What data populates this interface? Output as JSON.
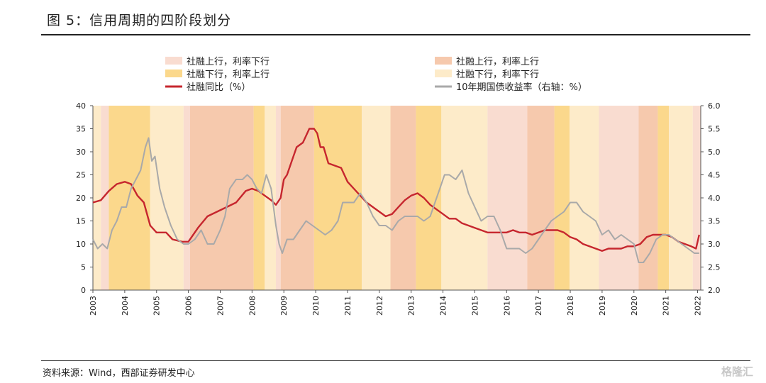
{
  "header": {
    "title": "图 5：信用周期的四阶段划分"
  },
  "footer": {
    "source": "资料来源：Wind，西部证券研发中心",
    "watermark": "格隆汇"
  },
  "colors": {
    "phase_a": "#f9dcd0",
    "phase_b": "#fbd88c",
    "phase_c": "#f6c9ad",
    "phase_d": "#fdebc9",
    "tsf": "#c6262e",
    "yield": "#a9a9a9"
  },
  "chart_data": {
    "type": "line",
    "title": "信用周期的四阶段划分",
    "x_range": [
      2003.0,
      2022.1
    ],
    "x_ticks": [
      "2003",
      "2004",
      "2005",
      "2006",
      "2007",
      "2008",
      "2009",
      "2010",
      "2011",
      "2012",
      "2013",
      "2014",
      "2015",
      "2016",
      "2017",
      "2018",
      "2019",
      "2020",
      "2021",
      "2022"
    ],
    "left_axis": {
      "min": 0,
      "max": 40,
      "ticks": [
        "0",
        "5",
        "10",
        "15",
        "20",
        "25",
        "30",
        "35",
        "40"
      ]
    },
    "right_axis": {
      "min": 2.0,
      "max": 6.0,
      "ticks": [
        "2.0",
        "2.5",
        "3.0",
        "3.5",
        "4.0",
        "4.5",
        "5.0",
        "5.5",
        "6.0"
      ]
    },
    "legend": [
      {
        "key": "A",
        "label": "社融上行，利率下行",
        "kind": "patch"
      },
      {
        "key": "C",
        "label": "社融上行，利率上行",
        "kind": "patch"
      },
      {
        "key": "B",
        "label": "社融下行，利率上行",
        "kind": "patch"
      },
      {
        "key": "D",
        "label": "社融下行，利率下行",
        "kind": "patch"
      },
      {
        "key": "tsf",
        "label": "社融同比（%）",
        "kind": "line"
      },
      {
        "key": "yield",
        "label": "10年期国债收益率（右轴：%）",
        "kind": "line"
      }
    ],
    "phases": [
      {
        "start": 2003.0,
        "end": 2003.25,
        "phase": "D"
      },
      {
        "start": 2003.25,
        "end": 2003.5,
        "phase": "A"
      },
      {
        "start": 2003.5,
        "end": 2004.8,
        "phase": "B"
      },
      {
        "start": 2004.8,
        "end": 2005.85,
        "phase": "D"
      },
      {
        "start": 2005.85,
        "end": 2006.05,
        "phase": "A"
      },
      {
        "start": 2006.05,
        "end": 2008.05,
        "phase": "C"
      },
      {
        "start": 2008.05,
        "end": 2008.4,
        "phase": "B"
      },
      {
        "start": 2008.4,
        "end": 2008.75,
        "phase": "D"
      },
      {
        "start": 2008.75,
        "end": 2008.9,
        "phase": "A"
      },
      {
        "start": 2008.9,
        "end": 2009.95,
        "phase": "C"
      },
      {
        "start": 2009.95,
        "end": 2011.45,
        "phase": "B"
      },
      {
        "start": 2011.45,
        "end": 2012.35,
        "phase": "D"
      },
      {
        "start": 2012.35,
        "end": 2013.15,
        "phase": "C"
      },
      {
        "start": 2013.15,
        "end": 2013.95,
        "phase": "B"
      },
      {
        "start": 2013.95,
        "end": 2015.4,
        "phase": "D"
      },
      {
        "start": 2015.4,
        "end": 2016.65,
        "phase": "A"
      },
      {
        "start": 2016.65,
        "end": 2017.5,
        "phase": "C"
      },
      {
        "start": 2017.5,
        "end": 2017.98,
        "phase": "B"
      },
      {
        "start": 2017.98,
        "end": 2018.9,
        "phase": "D"
      },
      {
        "start": 2018.9,
        "end": 2020.15,
        "phase": "A"
      },
      {
        "start": 2020.15,
        "end": 2020.75,
        "phase": "C"
      },
      {
        "start": 2020.75,
        "end": 2021.1,
        "phase": "B"
      },
      {
        "start": 2021.1,
        "end": 2021.85,
        "phase": "D"
      },
      {
        "start": 2021.85,
        "end": 2022.1,
        "phase": "A"
      }
    ],
    "series": [
      {
        "name": "社融同比（%）",
        "axis": "left",
        "x": [
          2003.0,
          2003.25,
          2003.5,
          2003.75,
          2004.0,
          2004.2,
          2004.4,
          2004.6,
          2004.8,
          2005.0,
          2005.3,
          2005.5,
          2005.8,
          2006.0,
          2006.3,
          2006.6,
          2006.9,
          2007.2,
          2007.5,
          2007.8,
          2008.0,
          2008.2,
          2008.4,
          2008.6,
          2008.75,
          2008.9,
          2009.0,
          2009.1,
          2009.25,
          2009.4,
          2009.6,
          2009.8,
          2009.95,
          2010.05,
          2010.15,
          2010.25,
          2010.4,
          2010.6,
          2010.8,
          2011.0,
          2011.2,
          2011.4,
          2011.6,
          2011.8,
          2012.0,
          2012.2,
          2012.4,
          2012.6,
          2012.8,
          2013.0,
          2013.2,
          2013.4,
          2013.6,
          2013.8,
          2014.0,
          2014.2,
          2014.4,
          2014.6,
          2014.8,
          2015.0,
          2015.2,
          2015.4,
          2015.6,
          2015.8,
          2016.0,
          2016.2,
          2016.4,
          2016.6,
          2016.8,
          2017.0,
          2017.2,
          2017.4,
          2017.6,
          2017.8,
          2018.0,
          2018.2,
          2018.4,
          2018.6,
          2018.8,
          2019.0,
          2019.2,
          2019.4,
          2019.6,
          2019.8,
          2020.0,
          2020.2,
          2020.4,
          2020.6,
          2020.8,
          2021.0,
          2021.2,
          2021.4,
          2021.6,
          2021.8,
          2021.95,
          2022.05
        ],
        "values": [
          19,
          19.5,
          21.5,
          23,
          23.5,
          23,
          20.5,
          19,
          14,
          12.5,
          12.5,
          11,
          10.5,
          10.5,
          13.5,
          16,
          17,
          18,
          19,
          21.5,
          22,
          21.5,
          20.5,
          19.5,
          18.5,
          20,
          24,
          25,
          28,
          31,
          32,
          35,
          35,
          34,
          31,
          31,
          27.5,
          27,
          26.5,
          23.5,
          22,
          20.5,
          19,
          18,
          17,
          16,
          16.5,
          18,
          19.5,
          20.5,
          21,
          20,
          18.5,
          17.5,
          16.5,
          15.5,
          15.5,
          14.5,
          14,
          13.5,
          13,
          12.5,
          12.5,
          12.5,
          12.5,
          13,
          12.5,
          12.5,
          12,
          12.5,
          13,
          13,
          13,
          12.5,
          11.5,
          11,
          10,
          9.5,
          9,
          8.5,
          9,
          9,
          9,
          9.5,
          9.5,
          10,
          11.5,
          12,
          12,
          12,
          11.5,
          10.5,
          10,
          9.5,
          9,
          12
        ]
      },
      {
        "name": "10年期国债收益率（右轴：%）",
        "axis": "right",
        "x": [
          2003.0,
          2003.15,
          2003.3,
          2003.45,
          2003.6,
          2003.75,
          2003.9,
          2004.05,
          2004.2,
          2004.35,
          2004.5,
          2004.65,
          2004.75,
          2004.85,
          2004.95,
          2005.1,
          2005.25,
          2005.45,
          2005.65,
          2005.85,
          2006.0,
          2006.2,
          2006.4,
          2006.6,
          2006.8,
          2007.0,
          2007.15,
          2007.3,
          2007.5,
          2007.7,
          2007.85,
          2008.0,
          2008.15,
          2008.3,
          2008.45,
          2008.6,
          2008.75,
          2008.85,
          2008.95,
          2009.1,
          2009.3,
          2009.5,
          2009.7,
          2009.9,
          2010.1,
          2010.3,
          2010.5,
          2010.7,
          2010.85,
          2011.0,
          2011.2,
          2011.4,
          2011.6,
          2011.8,
          2012.0,
          2012.2,
          2012.4,
          2012.6,
          2012.8,
          2013.0,
          2013.2,
          2013.4,
          2013.6,
          2013.75,
          2013.9,
          2014.05,
          2014.2,
          2014.4,
          2014.6,
          2014.8,
          2015.0,
          2015.2,
          2015.4,
          2015.6,
          2015.8,
          2016.0,
          2016.2,
          2016.4,
          2016.6,
          2016.8,
          2017.0,
          2017.2,
          2017.4,
          2017.6,
          2017.8,
          2018.0,
          2018.2,
          2018.4,
          2018.6,
          2018.8,
          2019.0,
          2019.2,
          2019.4,
          2019.6,
          2019.8,
          2020.0,
          2020.15,
          2020.3,
          2020.5,
          2020.7,
          2020.9,
          2021.1,
          2021.3,
          2021.5,
          2021.7,
          2021.9,
          2022.05
        ],
        "values": [
          3.1,
          2.9,
          3.0,
          2.9,
          3.3,
          3.5,
          3.8,
          3.8,
          4.2,
          4.4,
          4.6,
          5.1,
          5.3,
          4.8,
          4.9,
          4.2,
          3.8,
          3.4,
          3.1,
          3.0,
          3.0,
          3.1,
          3.3,
          3.0,
          3.0,
          3.3,
          3.6,
          4.2,
          4.4,
          4.4,
          4.5,
          4.4,
          4.2,
          4.1,
          4.5,
          4.2,
          3.4,
          3.0,
          2.8,
          3.1,
          3.1,
          3.3,
          3.5,
          3.4,
          3.3,
          3.2,
          3.3,
          3.5,
          3.9,
          3.9,
          3.9,
          4.1,
          3.9,
          3.6,
          3.4,
          3.4,
          3.3,
          3.5,
          3.6,
          3.6,
          3.6,
          3.5,
          3.6,
          3.9,
          4.2,
          4.5,
          4.5,
          4.4,
          4.6,
          4.1,
          3.8,
          3.5,
          3.6,
          3.6,
          3.3,
          2.9,
          2.9,
          2.9,
          2.8,
          2.9,
          3.1,
          3.3,
          3.5,
          3.6,
          3.7,
          3.9,
          3.9,
          3.7,
          3.6,
          3.5,
          3.2,
          3.3,
          3.1,
          3.2,
          3.1,
          3.0,
          2.6,
          2.6,
          2.8,
          3.1,
          3.2,
          3.2,
          3.1,
          3.0,
          2.9,
          2.8,
          2.8
        ]
      }
    ]
  }
}
